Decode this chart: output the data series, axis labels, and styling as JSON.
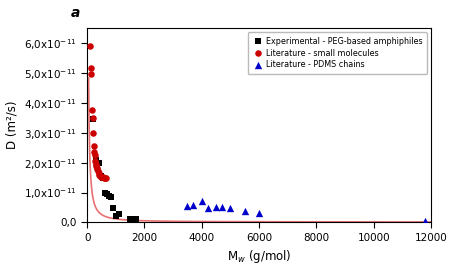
{
  "title_label": "a",
  "xlabel": "M$_{w}$ (g/mol)",
  "ylabel": "D (m²/s)",
  "xlim": [
    0,
    12000
  ],
  "ylim": [
    0,
    6.5e-11
  ],
  "yticks": [
    0,
    1e-11,
    2e-11,
    3e-11,
    4e-11,
    5e-11,
    6e-11
  ],
  "xticks": [
    0,
    2000,
    4000,
    6000,
    8000,
    10000,
    12000
  ],
  "experimental_black": {
    "x": [
      200,
      300,
      400,
      500,
      560,
      620,
      680,
      750,
      820,
      900,
      1000,
      1100,
      1500,
      1700
    ],
    "y": [
      3.45e-11,
      2.1e-11,
      2e-11,
      1.55e-11,
      1.5e-11,
      1e-11,
      9.5e-12,
      9e-12,
      8.5e-12,
      5e-12,
      2.2e-12,
      2.8e-12,
      1.2e-12,
      1.2e-12
    ],
    "color": "black",
    "marker": "s",
    "size": 22,
    "label": "Experimental - PEG-based amphiphiles"
  },
  "literature_red": {
    "x": [
      90,
      120,
      140,
      165,
      195,
      215,
      230,
      255,
      270,
      290,
      305,
      320,
      340,
      360,
      380,
      400,
      430,
      460,
      490,
      520,
      555,
      590,
      630,
      670
    ],
    "y": [
      5.9e-11,
      5.15e-11,
      4.95e-11,
      3.75e-11,
      3.5e-11,
      3e-11,
      2.55e-11,
      2.35e-11,
      2.25e-11,
      2.05e-11,
      1.95e-11,
      1.88e-11,
      1.82e-11,
      1.78e-11,
      1.72e-11,
      1.65e-11,
      1.6e-11,
      1.56e-11,
      1.53e-11,
      1.52e-11,
      1.51e-11,
      1.5e-11,
      1.5e-11,
      1.5e-11
    ],
    "color": "#cc0000",
    "marker": "o",
    "size": 22,
    "label": "Literature - small molecules"
  },
  "literature_blue": {
    "x": [
      3500,
      3700,
      4000,
      4200,
      4500,
      4700,
      5000,
      5500,
      6000,
      11800
    ],
    "y": [
      5.5e-12,
      6e-12,
      7.2e-12,
      4.8e-12,
      5.2e-12,
      5.2e-12,
      4.8e-12,
      3.8e-12,
      3.2e-12,
      6e-13
    ],
    "color": "#0000cc",
    "marker": "^",
    "size": 28,
    "label": "Literature - PDMS chains"
  },
  "fit_curve_color": "#e87070",
  "background_color": "#ffffff",
  "fit_A": 7.2e-09,
  "fit_b": 1.28,
  "fit_C": 1.4e-13
}
